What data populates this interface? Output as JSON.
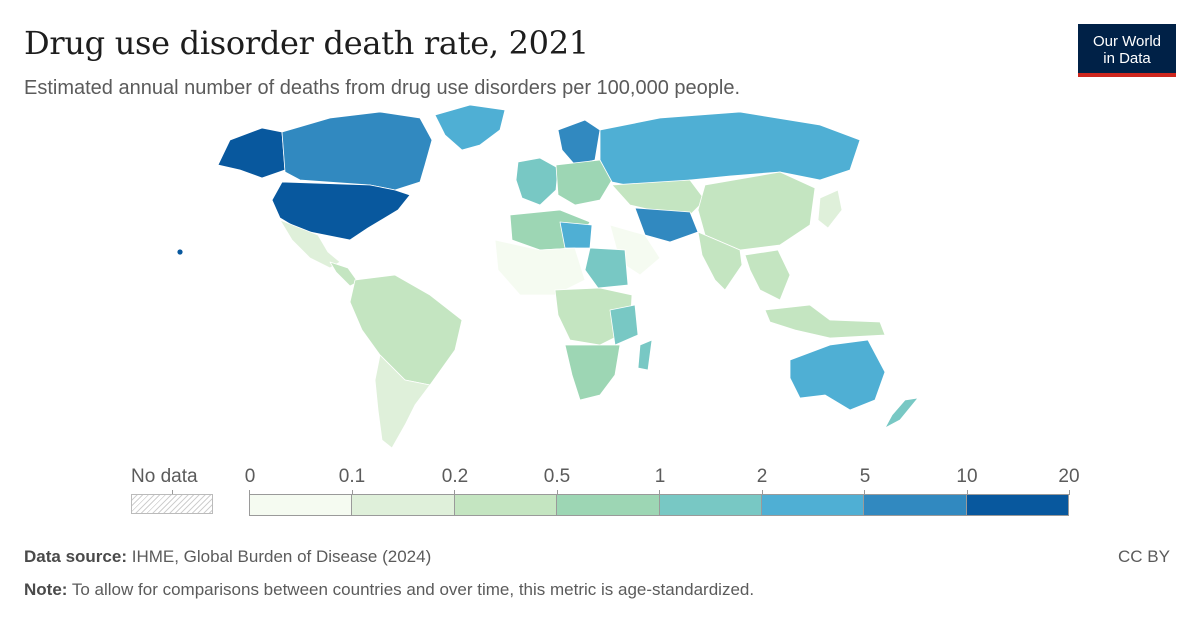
{
  "header": {
    "title": "Drug use disorder death rate, 2021",
    "subtitle": "Estimated annual number of deaths from drug use disorders per 100,000 people."
  },
  "logo": {
    "line1": "Our World",
    "line2": "in Data"
  },
  "legend": {
    "no_data_label": "No data",
    "ticks": [
      "0",
      "0.1",
      "0.2",
      "0.5",
      "1",
      "2",
      "5",
      "10",
      "20"
    ],
    "colors": [
      "#f5fbf1",
      "#dff0da",
      "#c4e5c1",
      "#9dd6b4",
      "#78c8c4",
      "#4fafd4",
      "#3189c0",
      "#08589e"
    ]
  },
  "footer": {
    "source_label": "Data source:",
    "source_text": "IHME, Global Burden of Disease (2024)",
    "note_label": "Note:",
    "note_text": "To allow for comparisons between countries and over time, this metric is age-standardized.",
    "license": "CC BY"
  }
}
